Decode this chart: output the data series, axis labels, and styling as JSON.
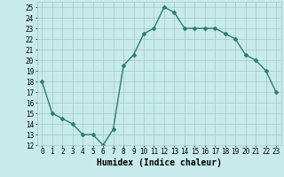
{
  "x": [
    0,
    1,
    2,
    3,
    4,
    5,
    6,
    7,
    8,
    9,
    10,
    11,
    12,
    13,
    14,
    15,
    16,
    17,
    18,
    19,
    20,
    21,
    22,
    23
  ],
  "y": [
    18,
    15,
    14.5,
    14,
    13,
    13,
    12,
    13.5,
    19.5,
    20.5,
    22.5,
    23,
    25,
    24.5,
    23,
    23,
    23,
    23,
    22.5,
    22,
    20.5,
    20,
    19,
    17
  ],
  "line_color": "#2e7d6e",
  "marker": "D",
  "marker_size": 2.0,
  "bg_color": "#c8eaea",
  "grid_color": "#a0c8c8",
  "xlabel": "Humidex (Indice chaleur)",
  "xlim": [
    -0.5,
    23.5
  ],
  "ylim": [
    12,
    25.5
  ],
  "yticks": [
    12,
    13,
    14,
    15,
    16,
    17,
    18,
    19,
    20,
    21,
    22,
    23,
    24,
    25
  ],
  "xticks": [
    0,
    1,
    2,
    3,
    4,
    5,
    6,
    7,
    8,
    9,
    10,
    11,
    12,
    13,
    14,
    15,
    16,
    17,
    18,
    19,
    20,
    21,
    22,
    23
  ],
  "xlabel_fontsize": 7,
  "tick_fontsize": 5.5,
  "line_width": 1.0
}
